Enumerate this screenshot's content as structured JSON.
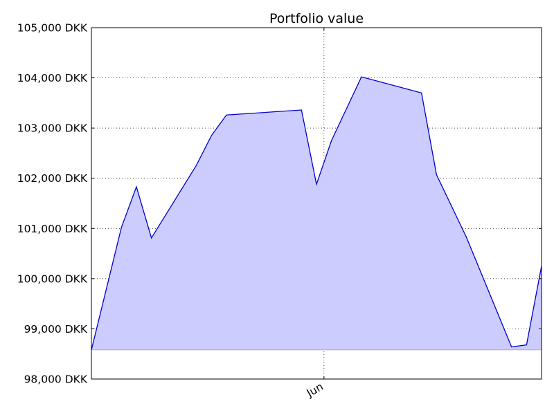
{
  "chart_data": {
    "type": "area",
    "title": "Portfolio value",
    "xlabel": "",
    "ylabel": "",
    "x_tick_labels": [
      "Jun"
    ],
    "y_tick_labels": [
      "98,000 DKK",
      "99,000 DKK",
      "100,000 DKK",
      "101,000 DKK",
      "102,000 DKK",
      "103,000 DKK",
      "104,000 DKK",
      "105,000 DKK"
    ],
    "y_ticks": [
      98000,
      99000,
      100000,
      101000,
      102000,
      103000,
      104000,
      105000
    ],
    "ylim": [
      98000,
      105000
    ],
    "xlim": [
      "2015-05-01",
      "2015-06-30"
    ],
    "x_ticks": [
      "2015-06-01"
    ],
    "grid": true,
    "fill_baseline": 98580,
    "series": [
      {
        "color": "#0000cc",
        "fill_color": "#ccccff",
        "points": [
          {
            "x": "2015-05-01",
            "y": 98580
          },
          {
            "x": "2015-05-05",
            "y": 101020
          },
          {
            "x": "2015-05-07",
            "y": 101830
          },
          {
            "x": "2015-05-09",
            "y": 100810
          },
          {
            "x": "2015-05-15",
            "y": 102260
          },
          {
            "x": "2015-05-17",
            "y": 102850
          },
          {
            "x": "2015-05-19",
            "y": 103260
          },
          {
            "x": "2015-05-29",
            "y": 103360
          },
          {
            "x": "2015-05-31",
            "y": 101880
          },
          {
            "x": "2015-06-02",
            "y": 102750
          },
          {
            "x": "2015-06-06",
            "y": 104020
          },
          {
            "x": "2015-06-14",
            "y": 103700
          },
          {
            "x": "2015-06-16",
            "y": 102070
          },
          {
            "x": "2015-06-20",
            "y": 100820
          },
          {
            "x": "2015-06-26",
            "y": 98640
          },
          {
            "x": "2015-06-28",
            "y": 98680
          },
          {
            "x": "2015-06-30",
            "y": 100250
          }
        ]
      }
    ]
  }
}
